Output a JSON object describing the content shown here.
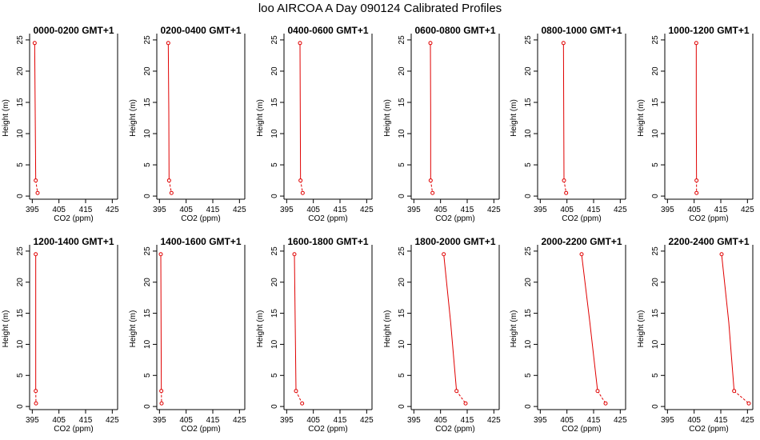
{
  "title": "loo AIRCOA A  Day 090124  Calibrated Profiles",
  "colors": {
    "series": "#e00000",
    "axis": "#000000"
  },
  "chart_data": {
    "type": "line",
    "xlabel": "CO2 (ppm)",
    "ylabel": "Height (m)",
    "xlim": [
      394,
      427
    ],
    "ylim": [
      -0.5,
      25.5
    ],
    "xticks": [
      "395",
      "405",
      "415",
      "425"
    ],
    "yticks": [
      "0",
      "5",
      "10",
      "15",
      "20",
      "25"
    ],
    "heights": [
      24.5,
      13.5,
      2.5,
      0.5
    ],
    "panels": [
      {
        "title": "0000-0200 GMT+1",
        "x": [
          395.9,
          396.1,
          396.3,
          397.0
        ]
      },
      {
        "title": "0200-0400 GMT+1",
        "x": [
          398.3,
          398.5,
          398.6,
          399.5
        ]
      },
      {
        "title": "0400-0600 GMT+1",
        "x": [
          400.0,
          400.1,
          400.2,
          401.0
        ]
      },
      {
        "title": "0600-0800 GMT+1",
        "x": [
          401.2,
          401.3,
          401.3,
          402.0
        ]
      },
      {
        "title": "0800-1000 GMT+1",
        "x": [
          403.7,
          403.8,
          403.9,
          404.7
        ]
      },
      {
        "title": "1000-1200 GMT+1",
        "x": [
          405.8,
          405.8,
          405.9,
          405.9
        ]
      },
      {
        "title": "1200-1400 GMT+1",
        "x": [
          396.3,
          396.3,
          396.3,
          396.4
        ]
      },
      {
        "title": "1400-1600 GMT+1",
        "x": [
          395.5,
          395.6,
          395.7,
          395.8
        ]
      },
      {
        "title": "1600-1800 GMT+1",
        "x": [
          397.9,
          398.2,
          398.5,
          400.8
        ]
      },
      {
        "title": "1800-2000 GMT+1",
        "x": [
          406.2,
          408.8,
          411.0,
          414.4
        ]
      },
      {
        "title": "2000-2200 GMT+1",
        "x": [
          410.5,
          413.6,
          416.5,
          419.5
        ]
      },
      {
        "title": "2200-2400 GMT+1",
        "x": [
          415.3,
          418.0,
          420.0,
          425.5
        ]
      }
    ]
  }
}
